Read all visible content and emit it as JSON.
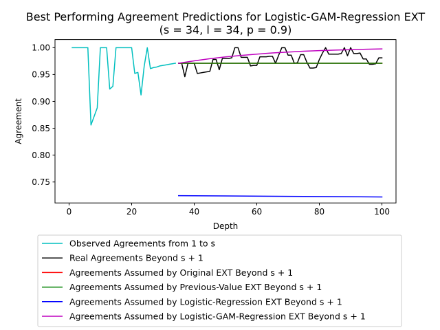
{
  "chart_data": {
    "type": "line",
    "title": "Best Performing Agreement Predictions for Logistic-GAM-Regression EXT",
    "subtitle": "(s = 34, l = 34, p = 0.9)",
    "xlabel": "Depth",
    "ylabel": "Agreement",
    "xlim": [
      -4.5,
      104.5
    ],
    "ylim": [
      0.711,
      1.015
    ],
    "xticks": [
      0,
      20,
      40,
      60,
      80,
      100
    ],
    "yticks": [
      0.75,
      0.8,
      0.85,
      0.9,
      0.95,
      1.0
    ],
    "xtick_labels": [
      "0",
      "20",
      "40",
      "60",
      "80",
      "100"
    ],
    "ytick_labels": [
      "0.75",
      "0.80",
      "0.85",
      "0.90",
      "0.95",
      "1.00"
    ],
    "grid": false,
    "legend_position": "below",
    "series": [
      {
        "name": "Observed Agreements from 1 to s",
        "color": "#00bfbf",
        "x": [
          1,
          2,
          3,
          4,
          5,
          6,
          7,
          8,
          9,
          10,
          11,
          12,
          13,
          14,
          15,
          16,
          17,
          18,
          19,
          20,
          21,
          22,
          23,
          24,
          25,
          26,
          27,
          28,
          29,
          30,
          31,
          32,
          33,
          34
        ],
        "y": [
          1.0,
          1.0,
          1.0,
          1.0,
          1.0,
          1.0,
          0.856,
          0.872,
          0.888,
          1.0,
          1.0,
          1.0,
          0.923,
          0.928,
          1.0,
          1.0,
          1.0,
          1.0,
          1.0,
          1.0,
          0.952,
          0.954,
          0.912,
          0.965,
          1.0,
          0.961,
          0.963,
          0.964,
          0.966,
          0.967,
          0.968,
          0.969,
          0.97,
          0.971
        ]
      },
      {
        "name": "Real Agreements Beyond s + 1",
        "color": "#000000",
        "x": [
          35,
          36,
          37,
          38,
          39,
          40,
          41,
          42,
          43,
          44,
          45,
          46,
          47,
          48,
          49,
          50,
          51,
          52,
          53,
          54,
          55,
          56,
          57,
          58,
          59,
          60,
          61,
          62,
          63,
          64,
          65,
          66,
          67,
          68,
          69,
          70,
          71,
          72,
          73,
          74,
          75,
          76,
          77,
          78,
          79,
          80,
          81,
          82,
          83,
          84,
          85,
          86,
          87,
          88,
          89,
          90,
          91,
          92,
          93,
          94,
          95,
          96,
          97,
          98,
          99,
          100
        ],
        "y": [
          0.971,
          0.971,
          0.946,
          0.971,
          0.971,
          0.971,
          0.952,
          0.953,
          0.954,
          0.955,
          0.956,
          0.978,
          0.978,
          0.959,
          0.98,
          0.98,
          0.98,
          0.981,
          1.0,
          1.0,
          0.982,
          0.982,
          0.982,
          0.966,
          0.967,
          0.967,
          0.983,
          0.983,
          0.983,
          0.984,
          0.984,
          0.971,
          0.986,
          1.0,
          1.0,
          0.986,
          0.986,
          0.971,
          0.972,
          0.987,
          0.987,
          0.973,
          0.962,
          0.962,
          0.963,
          0.978,
          0.99,
          1.0,
          0.988,
          0.988,
          0.988,
          0.988,
          0.989,
          1.0,
          0.985,
          1.0,
          0.989,
          0.989,
          0.99,
          0.979,
          0.979,
          0.969,
          0.969,
          0.97,
          0.981,
          0.981
        ]
      },
      {
        "name": "Agreements Assumed by Original EXT Beyond s + 1",
        "color": "#ff0000",
        "x": [
          35,
          100
        ],
        "y": [
          0.971,
          0.971
        ]
      },
      {
        "name": "Agreements Assumed by Previous-Value EXT Beyond s + 1",
        "color": "#008000",
        "x": [
          35,
          100
        ],
        "y": [
          0.971,
          0.971
        ]
      },
      {
        "name": "Agreements Assumed by Logistic-Regression EXT Beyond s + 1",
        "color": "#0000ff",
        "x": [
          35,
          50,
          70,
          100
        ],
        "y": [
          0.7245,
          0.724,
          0.7232,
          0.7222
        ]
      },
      {
        "name": "Agreements Assumed by Logistic-GAM-Regression EXT Beyond s + 1",
        "color": "#bf00bf",
        "x": [
          35,
          40,
          45,
          50,
          55,
          60,
          65,
          70,
          75,
          80,
          85,
          90,
          95,
          100
        ],
        "y": [
          0.971,
          0.9755,
          0.9795,
          0.9828,
          0.9856,
          0.988,
          0.9901,
          0.9918,
          0.9933,
          0.9945,
          0.9955,
          0.9963,
          0.997,
          0.9976
        ]
      }
    ]
  }
}
